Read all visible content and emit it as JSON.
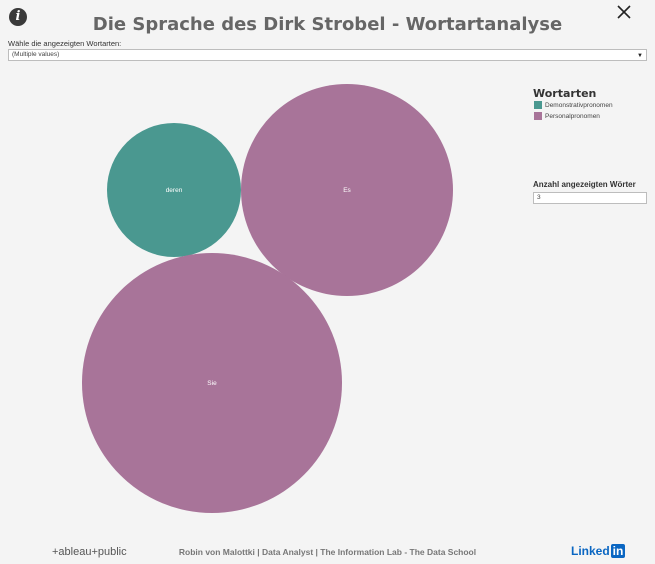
{
  "header": {
    "info_icon": "info-icon",
    "info_glyph": "i",
    "close_icon": "close-icon",
    "title": "Die Sprache des Dirk Strobel - Wortartanalyse"
  },
  "filter": {
    "label": "Wähle die angezeigten Wortarten:",
    "value": "(Multiple values)",
    "arrow": "▼"
  },
  "legend": {
    "title": "Wortarten",
    "items": [
      {
        "label": "Demonstrativpronomen",
        "color": "#4a9890"
      },
      {
        "label": "Personalpronomen",
        "color": "#a87499"
      }
    ]
  },
  "parameter": {
    "label": "Anzahl angezeigten Wörter",
    "value": "3"
  },
  "chart_data": {
    "type": "bubble",
    "series": [
      {
        "label": "deren",
        "category": "Demonstrativpronomen",
        "color": "#4a9890"
      },
      {
        "label": "Es",
        "category": "Personalpronomen",
        "color": "#a87499"
      },
      {
        "label": "Sie",
        "category": "Personalpronomen",
        "color": "#a87499"
      }
    ]
  },
  "footer": {
    "logo": "+ableau+public",
    "credit": "Robin von Malottki | Data Analyst | The Information Lab - The Data School",
    "linkedin_text": "Linked",
    "linkedin_in": "in"
  }
}
